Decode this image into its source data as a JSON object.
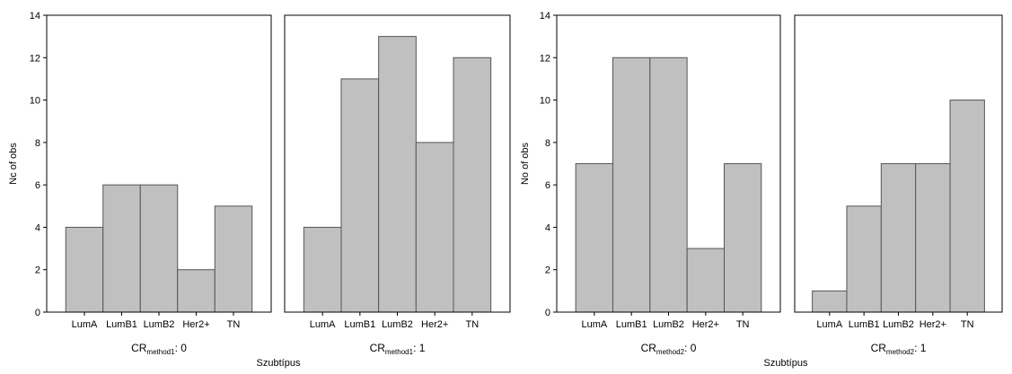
{
  "chart_data": [
    {
      "type": "bar",
      "group": "left",
      "panel_label_main": "CR",
      "panel_label_sub": "method1",
      "panel_label_value": ": 0",
      "categories": [
        "LumA",
        "LumB1",
        "LumB2",
        "Her2+",
        "TN"
      ],
      "values": [
        4,
        6,
        6,
        2,
        5
      ],
      "ylabel": "Nc of obs",
      "xlabel": "Szubtípus",
      "ylim": [
        0,
        14
      ],
      "yticks": [
        "0",
        "2",
        "4",
        "6",
        "8",
        "10",
        "12",
        "14"
      ],
      "bar_color": "#c0c0c0"
    },
    {
      "type": "bar",
      "group": "left",
      "panel_label_main": "CR",
      "panel_label_sub": "method1",
      "panel_label_value": ": 1",
      "categories": [
        "LumA",
        "LumB1",
        "LumB2",
        "Her2+",
        "TN"
      ],
      "values": [
        4,
        11,
        13,
        8,
        12
      ],
      "ylabel": "Nc of obs",
      "xlabel": "Szubtípus",
      "ylim": [
        0,
        14
      ],
      "bar_color": "#c0c0c0"
    },
    {
      "type": "bar",
      "group": "right",
      "panel_label_main": "CR",
      "panel_label_sub": "method2",
      "panel_label_value": ": 0",
      "categories": [
        "LumA",
        "LumB1",
        "LumB2",
        "Her2+",
        "TN"
      ],
      "values": [
        7,
        12,
        12,
        3,
        7
      ],
      "ylabel": "No of obs",
      "xlabel": "Szubtípus",
      "ylim": [
        0,
        14
      ],
      "yticks": [
        "0",
        "2",
        "4",
        "6",
        "8",
        "10",
        "12",
        "14"
      ],
      "bar_color": "#c0c0c0"
    },
    {
      "type": "bar",
      "group": "right",
      "panel_label_main": "CR",
      "panel_label_sub": "method2",
      "panel_label_value": ": 1",
      "categories": [
        "LumA",
        "LumB1",
        "LumB2",
        "Her2+",
        "TN"
      ],
      "values": [
        1,
        5,
        7,
        7,
        10
      ],
      "ylabel": "No of obs",
      "xlabel": "Szubtípus",
      "ylim": [
        0,
        14
      ],
      "bar_color": "#c0c0c0"
    }
  ]
}
